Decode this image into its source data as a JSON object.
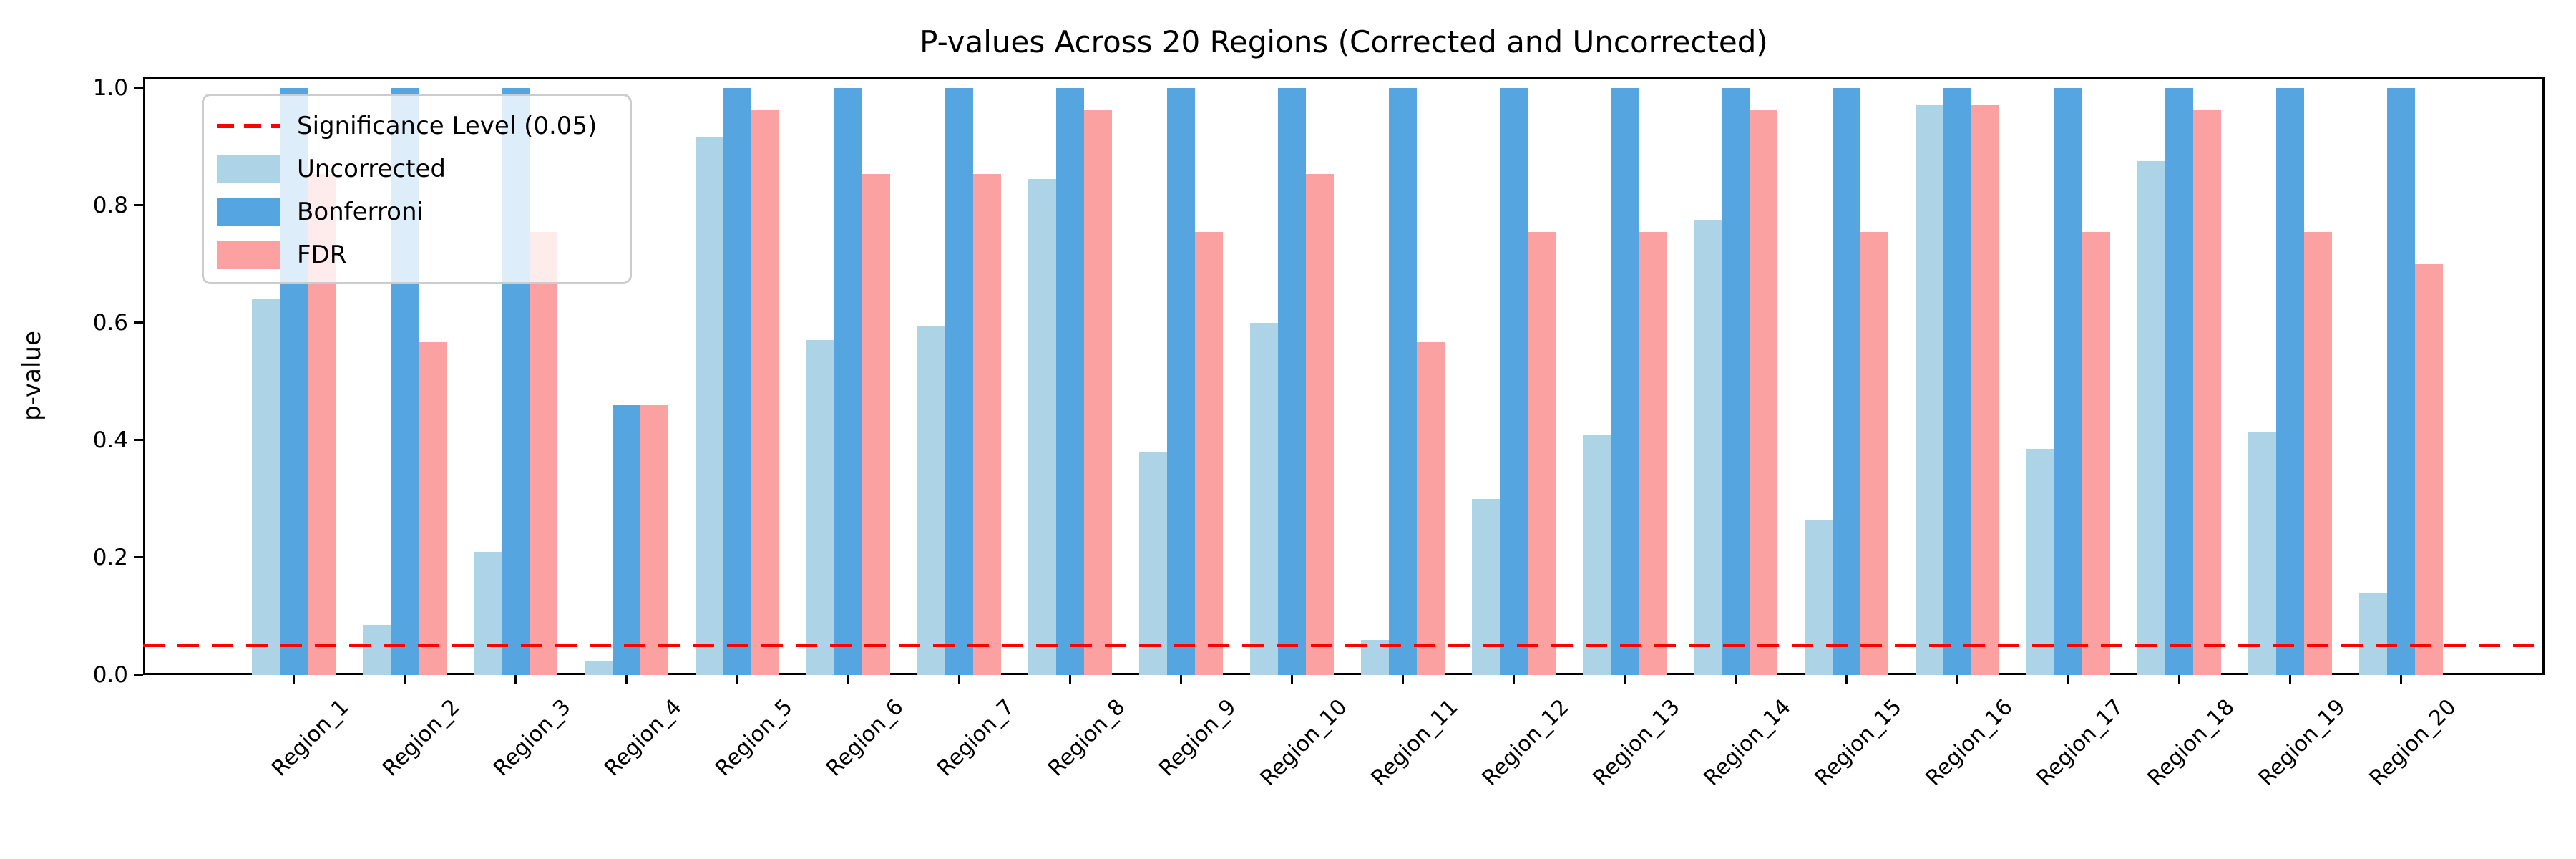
{
  "chart_data": {
    "type": "bar",
    "title": "P-values Across 20 Regions (Corrected and Uncorrected)",
    "xlabel": "",
    "ylabel": "p-value",
    "categories": [
      "Region_1",
      "Region_2",
      "Region_3",
      "Region_4",
      "Region_5",
      "Region_6",
      "Region_7",
      "Region_8",
      "Region_9",
      "Region_10",
      "Region_11",
      "Region_12",
      "Region_13",
      "Region_14",
      "Region_15",
      "Region_16",
      "Region_17",
      "Region_18",
      "Region_19",
      "Region_20"
    ],
    "series": [
      {
        "name": "Uncorrected",
        "color": "#ADD3E6",
        "values": [
          0.64,
          0.085,
          0.21,
          0.023,
          0.915,
          0.57,
          0.595,
          0.845,
          0.38,
          0.6,
          0.06,
          0.3,
          0.41,
          0.775,
          0.265,
          0.97,
          0.385,
          0.875,
          0.415,
          0.14
        ]
      },
      {
        "name": "Bonferroni",
        "color": "#55A6E0",
        "values": [
          1.0,
          1.0,
          1.0,
          0.46,
          1.0,
          1.0,
          1.0,
          1.0,
          1.0,
          1.0,
          1.0,
          1.0,
          1.0,
          1.0,
          1.0,
          1.0,
          1.0,
          1.0,
          1.0,
          1.0
        ]
      },
      {
        "name": "FDR",
        "color": "#FBA1A1",
        "values": [
          0.853,
          0.567,
          0.755,
          0.46,
          0.963,
          0.853,
          0.853,
          0.963,
          0.755,
          0.853,
          0.567,
          0.755,
          0.755,
          0.963,
          0.755,
          0.97,
          0.755,
          0.963,
          0.755,
          0.7
        ]
      }
    ],
    "significance_line": {
      "label": "Significance Level (0.05)",
      "value": 0.05,
      "color": "#FF0000",
      "style": "dashed"
    },
    "yticks": [
      0.0,
      0.2,
      0.4,
      0.6,
      0.8,
      1.0
    ],
    "ylim": [
      0,
      1.018
    ],
    "grid": false,
    "legend_position": "upper left"
  }
}
